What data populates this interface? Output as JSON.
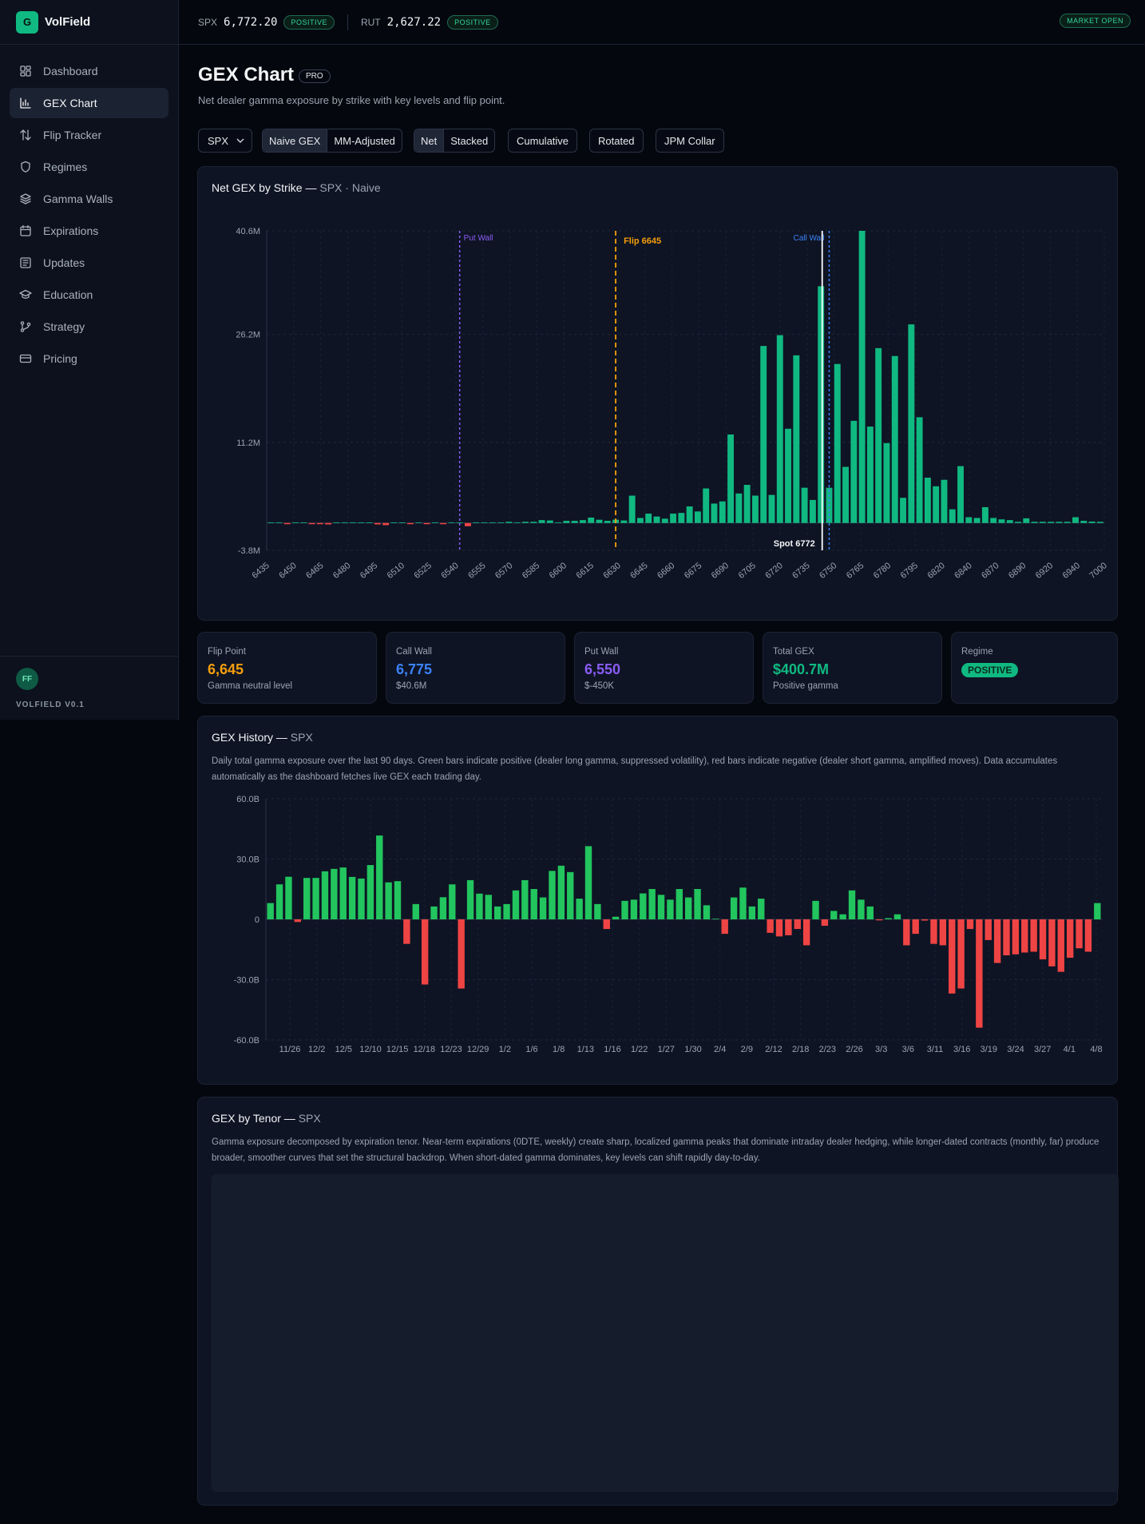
{
  "brand": {
    "logo": "G",
    "name": "VolField"
  },
  "nav": [
    {
      "label": "Dashboard",
      "icon": "dashboard-icon"
    },
    {
      "label": "GEX Chart",
      "icon": "bar-chart-icon",
      "active": true
    },
    {
      "label": "Flip Tracker",
      "icon": "arrows-updown-icon"
    },
    {
      "label": "Regimes",
      "icon": "shield-icon"
    },
    {
      "label": "Gamma Walls",
      "icon": "layers-icon"
    },
    {
      "label": "Expirations",
      "icon": "calendar-icon"
    },
    {
      "label": "Updates",
      "icon": "newspaper-icon"
    },
    {
      "label": "Education",
      "icon": "graduation-cap-icon"
    },
    {
      "label": "Strategy",
      "icon": "git-branch-icon"
    },
    {
      "label": "Pricing",
      "icon": "credit-card-icon"
    }
  ],
  "user": {
    "initials": "FF",
    "version": "VOLFIELD V0.1"
  },
  "topbar": {
    "tickers": [
      {
        "symbol": "SPX",
        "price": "6,772.20",
        "status": "POSITIVE"
      },
      {
        "symbol": "RUT",
        "price": "2,627.22",
        "status": "POSITIVE"
      }
    ],
    "market_status": "MARKET OPEN"
  },
  "header": {
    "title": "GEX Chart",
    "badge": "PRO",
    "subtitle": "Net dealer gamma exposure by strike with key levels and flip point."
  },
  "controls": {
    "symbol": "SPX",
    "gex_modes": [
      "Naive GEX",
      "MM-Adjusted"
    ],
    "view_modes": [
      "Net",
      "Stacked"
    ],
    "toggles": [
      "Cumulative",
      "Rotated",
      "JPM Collar"
    ]
  },
  "strike_panel": {
    "title": "Net GEX by Strike —",
    "title_dim": "SPX · Naive"
  },
  "stats": [
    {
      "label": "Flip Point",
      "value": "6,645",
      "sub": "Gamma neutral level",
      "color": "#f59e0b"
    },
    {
      "label": "Call Wall",
      "value": "6,775",
      "sub": "$40.6M",
      "color": "#3b82f6"
    },
    {
      "label": "Put Wall",
      "value": "6,550",
      "sub": "$-450K",
      "color": "#8b5cf6"
    },
    {
      "label": "Total GEX",
      "value": "$400.7M",
      "sub": "Positive gamma",
      "color": "#10b981"
    },
    {
      "label": "Regime",
      "value": "POSITIVE"
    }
  ],
  "history_panel": {
    "title": "GEX History —",
    "title_dim": "SPX",
    "description": "Daily total gamma exposure over the last 90 days. Green bars indicate positive (dealer long gamma, suppressed volatility), red bars indicate negative (dealer short gamma, amplified moves). Data accumulates automatically as the dashboard fetches live GEX each trading day."
  },
  "tenor_panel": {
    "title": "GEX by Tenor —",
    "title_dim": "SPX",
    "description": "Gamma exposure decomposed by expiration tenor. Near-term expirations (0DTE, weekly) create sharp, localized gamma peaks that dominate intraday dealer hedging, while longer-dated contracts (monthly, far) produce broader, smoother curves that set the structural backdrop. When short-dated gamma dominates, key levels can shift rapidly day-to-day."
  },
  "colors": {
    "positive": "#10b981",
    "negative": "#ef4444",
    "flip": "#f59e0b",
    "call_wall": "#3b82f6",
    "put_wall": "#8b5cf6"
  },
  "chart_data": [
    {
      "type": "bar",
      "title": "Net GEX by Strike — SPX · Naive",
      "xlabel": "",
      "ylabel": "",
      "ylim": [
        -3.8,
        40.6
      ],
      "yticks": [
        "40.6M",
        "26.2M",
        "11.2M",
        "-3.8M"
      ],
      "ytick_values": [
        40.6,
        26.2,
        11.2,
        -3.8
      ],
      "x_start": 6435,
      "x_step": 5,
      "xtick_labels": [
        "6435",
        "6450",
        "6465",
        "6480",
        "6495",
        "6510",
        "6525",
        "6540",
        "6555",
        "6570",
        "6585",
        "6600",
        "6615",
        "6630",
        "6645",
        "6660",
        "6675",
        "6690",
        "6705",
        "6720",
        "6735",
        "6750",
        "6765",
        "6780",
        "6795",
        "6820",
        "6840",
        "6870",
        "6890",
        "6920",
        "6940",
        "7000"
      ],
      "values_millions": [
        0,
        0,
        -0.15,
        0,
        0,
        -0.1,
        -0.15,
        -0.2,
        0,
        0,
        0,
        0,
        0,
        -0.2,
        -0.3,
        0,
        0,
        -0.1,
        0,
        -0.1,
        0,
        -0.1,
        0,
        0,
        -0.45,
        0,
        0,
        0,
        0,
        0.1,
        0,
        0.15,
        0.1,
        0.4,
        0.35,
        0,
        0.3,
        0.3,
        0.4,
        0.75,
        0.45,
        0.3,
        0.45,
        0.35,
        3.8,
        0.7,
        1.3,
        0.9,
        0.6,
        1.3,
        1.4,
        2.3,
        1.6,
        4.8,
        2.7,
        3,
        12.3,
        4.1,
        5.3,
        3.8,
        24.6,
        3.9,
        26.1,
        13.1,
        23.3,
        4.9,
        3.2,
        32.9,
        4.9,
        22.1,
        7.8,
        14.2,
        40.6,
        13.4,
        24.3,
        11.1,
        23.2,
        3.5,
        27.6,
        14.7,
        6.3,
        5.1,
        6,
        1.9,
        7.9,
        0.8,
        0.7,
        2.2,
        0.7,
        0.5,
        0.4,
        0.1,
        0.65,
        0.1,
        0.1,
        0.05,
        0.05,
        0.05,
        0.8,
        0.3,
        0.2,
        0.1
      ],
      "annotations": [
        {
          "label": "Put Wall",
          "strike": 6550,
          "color": "#8b5cf6"
        },
        {
          "label": "Flip 6645",
          "strike": 6645,
          "color": "#f59e0b"
        },
        {
          "label": "Call Wall",
          "strike": 6775,
          "color": "#3b82f6"
        },
        {
          "label": "Spot 6772",
          "strike": 6772.2,
          "color": "#ffffff"
        }
      ]
    },
    {
      "type": "bar",
      "title": "GEX History — SPX",
      "xlabel": "",
      "ylabel": "",
      "ylim": [
        -60,
        60
      ],
      "yticks": [
        "60.0B",
        "30.0B",
        "0",
        "-30.0B",
        "-60.0B"
      ],
      "ytick_values": [
        60,
        30,
        0,
        -30,
        -60
      ],
      "xtick_labels": [
        "11/26",
        "12/2",
        "12/5",
        "12/10",
        "12/15",
        "12/18",
        "12/23",
        "12/29",
        "1/2",
        "1/6",
        "1/8",
        "1/13",
        "1/16",
        "1/22",
        "1/27",
        "1/30",
        "2/4",
        "2/9",
        "2/12",
        "2/18",
        "2/23",
        "2/26",
        "3/3",
        "3/6",
        "3/11",
        "3/16",
        "3/19",
        "3/24",
        "3/27",
        "4/1",
        "4/8"
      ],
      "values_billions": [
        8.1,
        17.4,
        21.2,
        -1.3,
        20.6,
        20.6,
        23.9,
        25.1,
        25.8,
        21.1,
        20.3,
        27,
        41.7,
        18.4,
        19,
        -12.2,
        7.6,
        -32.4,
        6.4,
        11,
        17.4,
        -34.4,
        19.5,
        12.8,
        12.2,
        6.4,
        7.6,
        14.4,
        19.5,
        15.1,
        10.9,
        24.1,
        26.7,
        23.5,
        10.3,
        36.4,
        7.6,
        -4.8,
        1.3,
        9.2,
        9.8,
        12.9,
        15.1,
        12.2,
        9.8,
        15.1,
        10.9,
        15.1,
        7,
        0,
        -7.2,
        10.9,
        15.8,
        6.4,
        10.3,
        -6.7,
        -8.5,
        -7.9,
        -4.8,
        -12.9,
        9.2,
        -3.2,
        4.2,
        2.5,
        14.4,
        9.8,
        6.4,
        -0.5,
        0.6,
        2.5,
        -12.9,
        -7.2,
        -0.6,
        -12.2,
        -12.9,
        -36.9,
        -34.4,
        -4.8,
        -53.9,
        -10.3,
        -21.7,
        -17.9,
        -17.4,
        -16.5,
        -16.1,
        -19.9,
        -23.4,
        -26.1,
        -19.1,
        -14.4,
        -16.1,
        8.1
      ]
    }
  ]
}
